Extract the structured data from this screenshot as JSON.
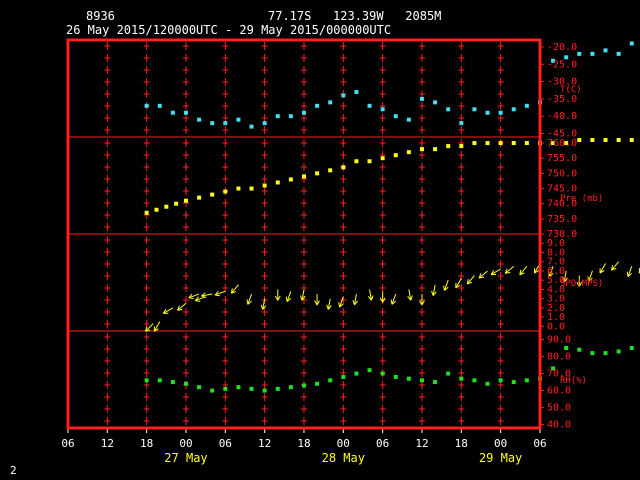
{
  "header": {
    "station": "8936",
    "location": "77.17S   123.39W   2085M",
    "period": "26 May 2015/120000UTC - 29 May 2015/000000UTC"
  },
  "page_number": "2",
  "colors": {
    "frame": "#ff2020",
    "t": "#40e0f0",
    "p": "#ffff20",
    "spd": "#ffff20",
    "rh": "#20e020",
    "grid": "#ff2020",
    "text": "#ffffff"
  },
  "chart_data": {
    "type": "scatter",
    "x_ticks": [
      "06",
      "12",
      "18",
      "00",
      "06",
      "12",
      "18",
      "00",
      "06",
      "12",
      "18",
      "00",
      "06"
    ],
    "x_day_labels": [
      {
        "label": "27 May",
        "tick": 3
      },
      {
        "label": "28 May",
        "tick": 7
      },
      {
        "label": "29 May",
        "tick": 11
      }
    ],
    "panels": [
      {
        "id": "t",
        "name": "T(C)",
        "color": "#40e0f0",
        "ylim": [
          -46,
          -18
        ],
        "y_ticks": [
          -20,
          -25,
          -30,
          -35,
          -40,
          -45
        ],
        "tick_labels": [
          "-20.0",
          "-25.0",
          "-30.0",
          "-35.0",
          "-40.0",
          "-45.0"
        ],
        "x_hours": [
          12,
          14,
          16,
          18,
          20,
          22,
          24,
          26,
          28,
          30,
          32,
          34,
          36,
          38,
          40,
          42,
          44,
          46,
          48,
          50,
          52,
          54,
          56,
          58,
          60,
          62,
          64,
          66,
          68,
          70,
          72,
          74,
          76,
          78,
          80,
          82,
          84,
          86,
          88,
          90
        ],
        "values": [
          -37,
          -37,
          -39,
          -39,
          -41,
          -42,
          -42,
          -41,
          -43,
          -42,
          -40,
          -40,
          -39,
          -37,
          -36,
          -34,
          -33,
          -37,
          -38,
          -40,
          -41,
          -35,
          -36,
          -38,
          -42,
          -38,
          -39,
          -39,
          -38,
          -37,
          -36,
          -24,
          -23,
          -22,
          -22,
          -21,
          -22,
          -19,
          -18,
          -19
        ]
      },
      {
        "id": "pre",
        "name": "Pre (mb)",
        "color": "#ffff20",
        "ylim": [
          730,
          762
        ],
        "y_ticks": [
          760,
          755,
          750,
          745,
          740,
          735,
          730
        ],
        "tick_labels": [
          "760.0",
          "755.0",
          "750.0",
          "745.0",
          "740.0",
          "735.0",
          "730.0"
        ],
        "x_hours": [
          12,
          13.5,
          15,
          16.5,
          18,
          20,
          22,
          24,
          26,
          28,
          30,
          32,
          34,
          36,
          38,
          40,
          42,
          44,
          46,
          48,
          50,
          52,
          54,
          56,
          58,
          60,
          62,
          64,
          66,
          68,
          70,
          72,
          74,
          76,
          78,
          80,
          82,
          84,
          86,
          88,
          90
        ],
        "values": [
          737,
          738,
          739,
          740,
          741,
          742,
          743,
          744,
          745,
          745,
          746,
          747,
          748,
          749,
          750,
          751,
          752,
          754,
          754,
          755,
          756,
          757,
          758,
          758,
          759,
          759,
          760,
          760,
          760,
          760,
          760,
          760,
          760,
          760,
          761,
          761,
          761,
          761,
          761,
          761,
          761
        ]
      },
      {
        "id": "spd",
        "name": "SPD(MPS)",
        "color": "#ffff20",
        "ylim": [
          -0.5,
          10
        ],
        "y_ticks": [
          9,
          8,
          7,
          6,
          5,
          4,
          3,
          2,
          1,
          0
        ],
        "tick_labels": [
          "9.0",
          "8.0",
          "7.0",
          "6.0",
          "5.0",
          "4.0",
          "3.0",
          "2.0",
          "1.0",
          "0.0"
        ],
        "x_hours": [
          13,
          14,
          16,
          18,
          20,
          21,
          22,
          24,
          26,
          28,
          30,
          32,
          34,
          36,
          38,
          40,
          42,
          44,
          46,
          48,
          50,
          52,
          54,
          56,
          58,
          60,
          62,
          64,
          66,
          68,
          70,
          72,
          74,
          76,
          78,
          80,
          82,
          84,
          86,
          88,
          90
        ],
        "values": [
          0.3,
          0.5,
          2,
          2.5,
          3.5,
          3.2,
          3.5,
          3.8,
          4.5,
          3.5,
          3,
          4,
          3.8,
          4,
          3.5,
          3,
          3.2,
          3.5,
          4,
          3.8,
          3.5,
          4,
          3.5,
          4.5,
          5,
          5.2,
          5.5,
          6,
          6.2,
          6.5,
          6.5,
          6.8,
          6.5,
          6,
          5.5,
          6,
          6.8,
          7,
          6.5,
          6.8,
          6.5
        ],
        "directions": [
          225,
          210,
          240,
          230,
          250,
          250,
          260,
          250,
          220,
          200,
          190,
          180,
          200,
          190,
          180,
          190,
          200,
          190,
          170,
          180,
          200,
          170,
          180,
          190,
          200,
          210,
          220,
          230,
          240,
          230,
          220,
          210,
          200,
          190,
          180,
          200,
          210,
          220,
          200,
          210,
          210
        ]
      },
      {
        "id": "rh",
        "name": "RH(%)",
        "color": "#20e020",
        "ylim": [
          38,
          95
        ],
        "y_ticks": [
          90,
          80,
          70,
          60,
          50,
          40
        ],
        "tick_labels": [
          "90.0",
          "80.0",
          "70.0",
          "60.0",
          "50.0",
          "40.0"
        ],
        "x_hours": [
          12,
          14,
          16,
          18,
          20,
          22,
          24,
          26,
          28,
          30,
          32,
          34,
          36,
          38,
          40,
          42,
          44,
          46,
          48,
          50,
          52,
          54,
          56,
          58,
          60,
          62,
          64,
          66,
          68,
          70,
          72,
          74,
          76,
          78,
          80,
          82,
          84,
          86,
          88,
          90
        ],
        "values": [
          66,
          66,
          65,
          64,
          62,
          60,
          61,
          62,
          61,
          60,
          61,
          62,
          63,
          64,
          66,
          68,
          70,
          72,
          70,
          68,
          67,
          66,
          65,
          70,
          67,
          66,
          64,
          66,
          65,
          66,
          67,
          73,
          85,
          84,
          82,
          82,
          83,
          85,
          86,
          86
        ]
      }
    ]
  }
}
